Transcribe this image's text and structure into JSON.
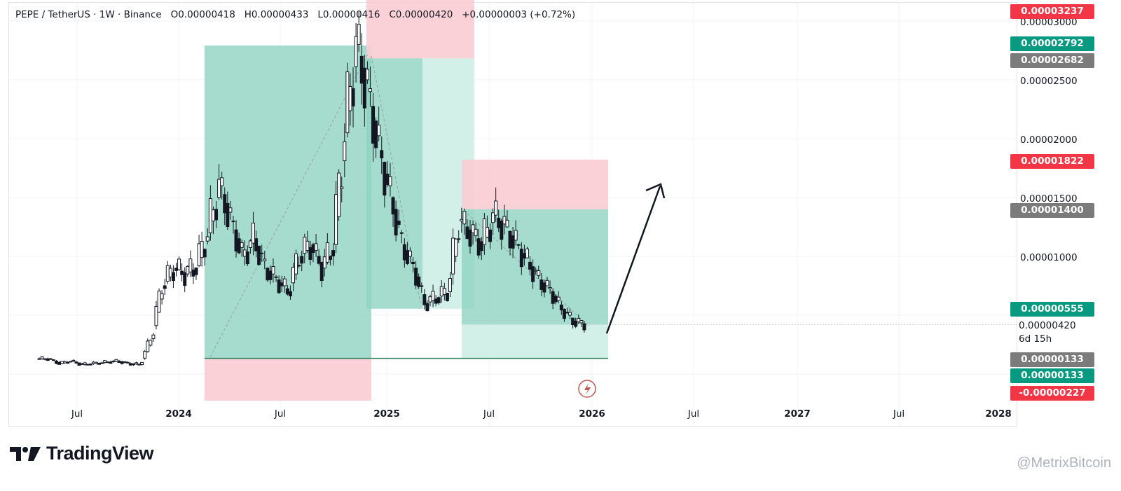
{
  "legend": {
    "symbol": "PEPE / TetherUS · 1W · Binance",
    "open": "O0.00000418",
    "high": "H0.00000433",
    "low": "L0.00000416",
    "close": "C0.00000420",
    "change": "+0.00000003 (+0.72%)"
  },
  "price_axis": {
    "ticks": [
      "0.00003000",
      "0.00002500",
      "0.00002000",
      "0.00001500",
      "0.00001000"
    ]
  },
  "price_labels": [
    {
      "text": "0.00003237",
      "color": "#f23645"
    },
    {
      "text": "0.00002792",
      "color": "#089981"
    },
    {
      "text": "0.00002682",
      "color": "#7b7b7b"
    },
    {
      "text": "0.00001822",
      "color": "#f23645"
    },
    {
      "text": "0.00001400",
      "color": "#7b7b7b"
    },
    {
      "text": "0.00000555",
      "color": "#089981"
    },
    {
      "text": "0.00000133",
      "color": "#7b7b7b"
    },
    {
      "text": "0.00000133",
      "color": "#089981"
    },
    {
      "text": "-0.00000227",
      "color": "#f23645"
    }
  ],
  "last_price": {
    "value": "0.00000420",
    "countdown": "6d 15h"
  },
  "time_axis": [
    "Jul",
    "2024",
    "Jul",
    "2025",
    "Jul",
    "2026",
    "Jul",
    "2027",
    "Jul",
    "2028"
  ],
  "branding": {
    "name": "TradingView",
    "watermark": "@MetrixBitcoin"
  },
  "chart_data": {
    "type": "candlestick",
    "title": "PEPE / TetherUS · 1W · Binance",
    "ohlc_last": {
      "open": 4.18e-06,
      "high": 4.33e-06,
      "low": 4.16e-06,
      "close": 4.2e-06,
      "change": 3e-08,
      "change_pct": 0.72
    },
    "x_axis_ticks": [
      "Jul",
      "2024",
      "Jul",
      "2025",
      "Jul",
      "2026",
      "Jul",
      "2027",
      "Jul",
      "2028"
    ],
    "y_axis_ticks": [
      3e-05,
      2.5e-05,
      2e-05,
      1.5e-05,
      1e-05
    ],
    "ylim": [
      -3.5e-06,
      3.27e-05
    ],
    "close_path": [
      1.3e-06,
      9e-07,
      1.1e-06,
      8e-07,
      9e-07,
      1e-06,
      1.1e-06,
      9e-07,
      8e-07,
      3e-06,
      7.5e-06,
      9e-06,
      8.5e-06,
      9.2e-06,
      1.2e-05,
      1.6e-05,
      1.3e-05,
      1e-05,
      1.15e-05,
      9e-06,
      8e-06,
      7e-06,
      1e-05,
      1.1e-05,
      9e-06,
      1.1e-05,
      2.05e-05,
      2.8e-05,
      2.4e-05,
      1.9e-05,
      1.5e-05,
      1.1e-05,
      9e-06,
      6e-06,
      6.5e-06,
      7e-06,
      1.3e-05,
      1.2e-05,
      1.1e-05,
      1.35e-05,
      1.25e-05,
      1.1e-05,
      9.5e-06,
      8e-06,
      7e-06,
      5.5e-06,
      4.5e-06,
      4.2e-06
    ],
    "positions": [
      {
        "kind": "long",
        "entry": 1.33e-06,
        "target": 2.792e-05,
        "stop": -2.27e-06
      },
      {
        "kind": "short",
        "entry": 2.682e-05,
        "target": 5.55e-06,
        "stop": 3.237e-05
      },
      {
        "kind": "long",
        "entry": 1.4e-05,
        "target": 1.822e-05,
        "stop": 1.33e-06
      }
    ],
    "projection": "up-arrow"
  }
}
